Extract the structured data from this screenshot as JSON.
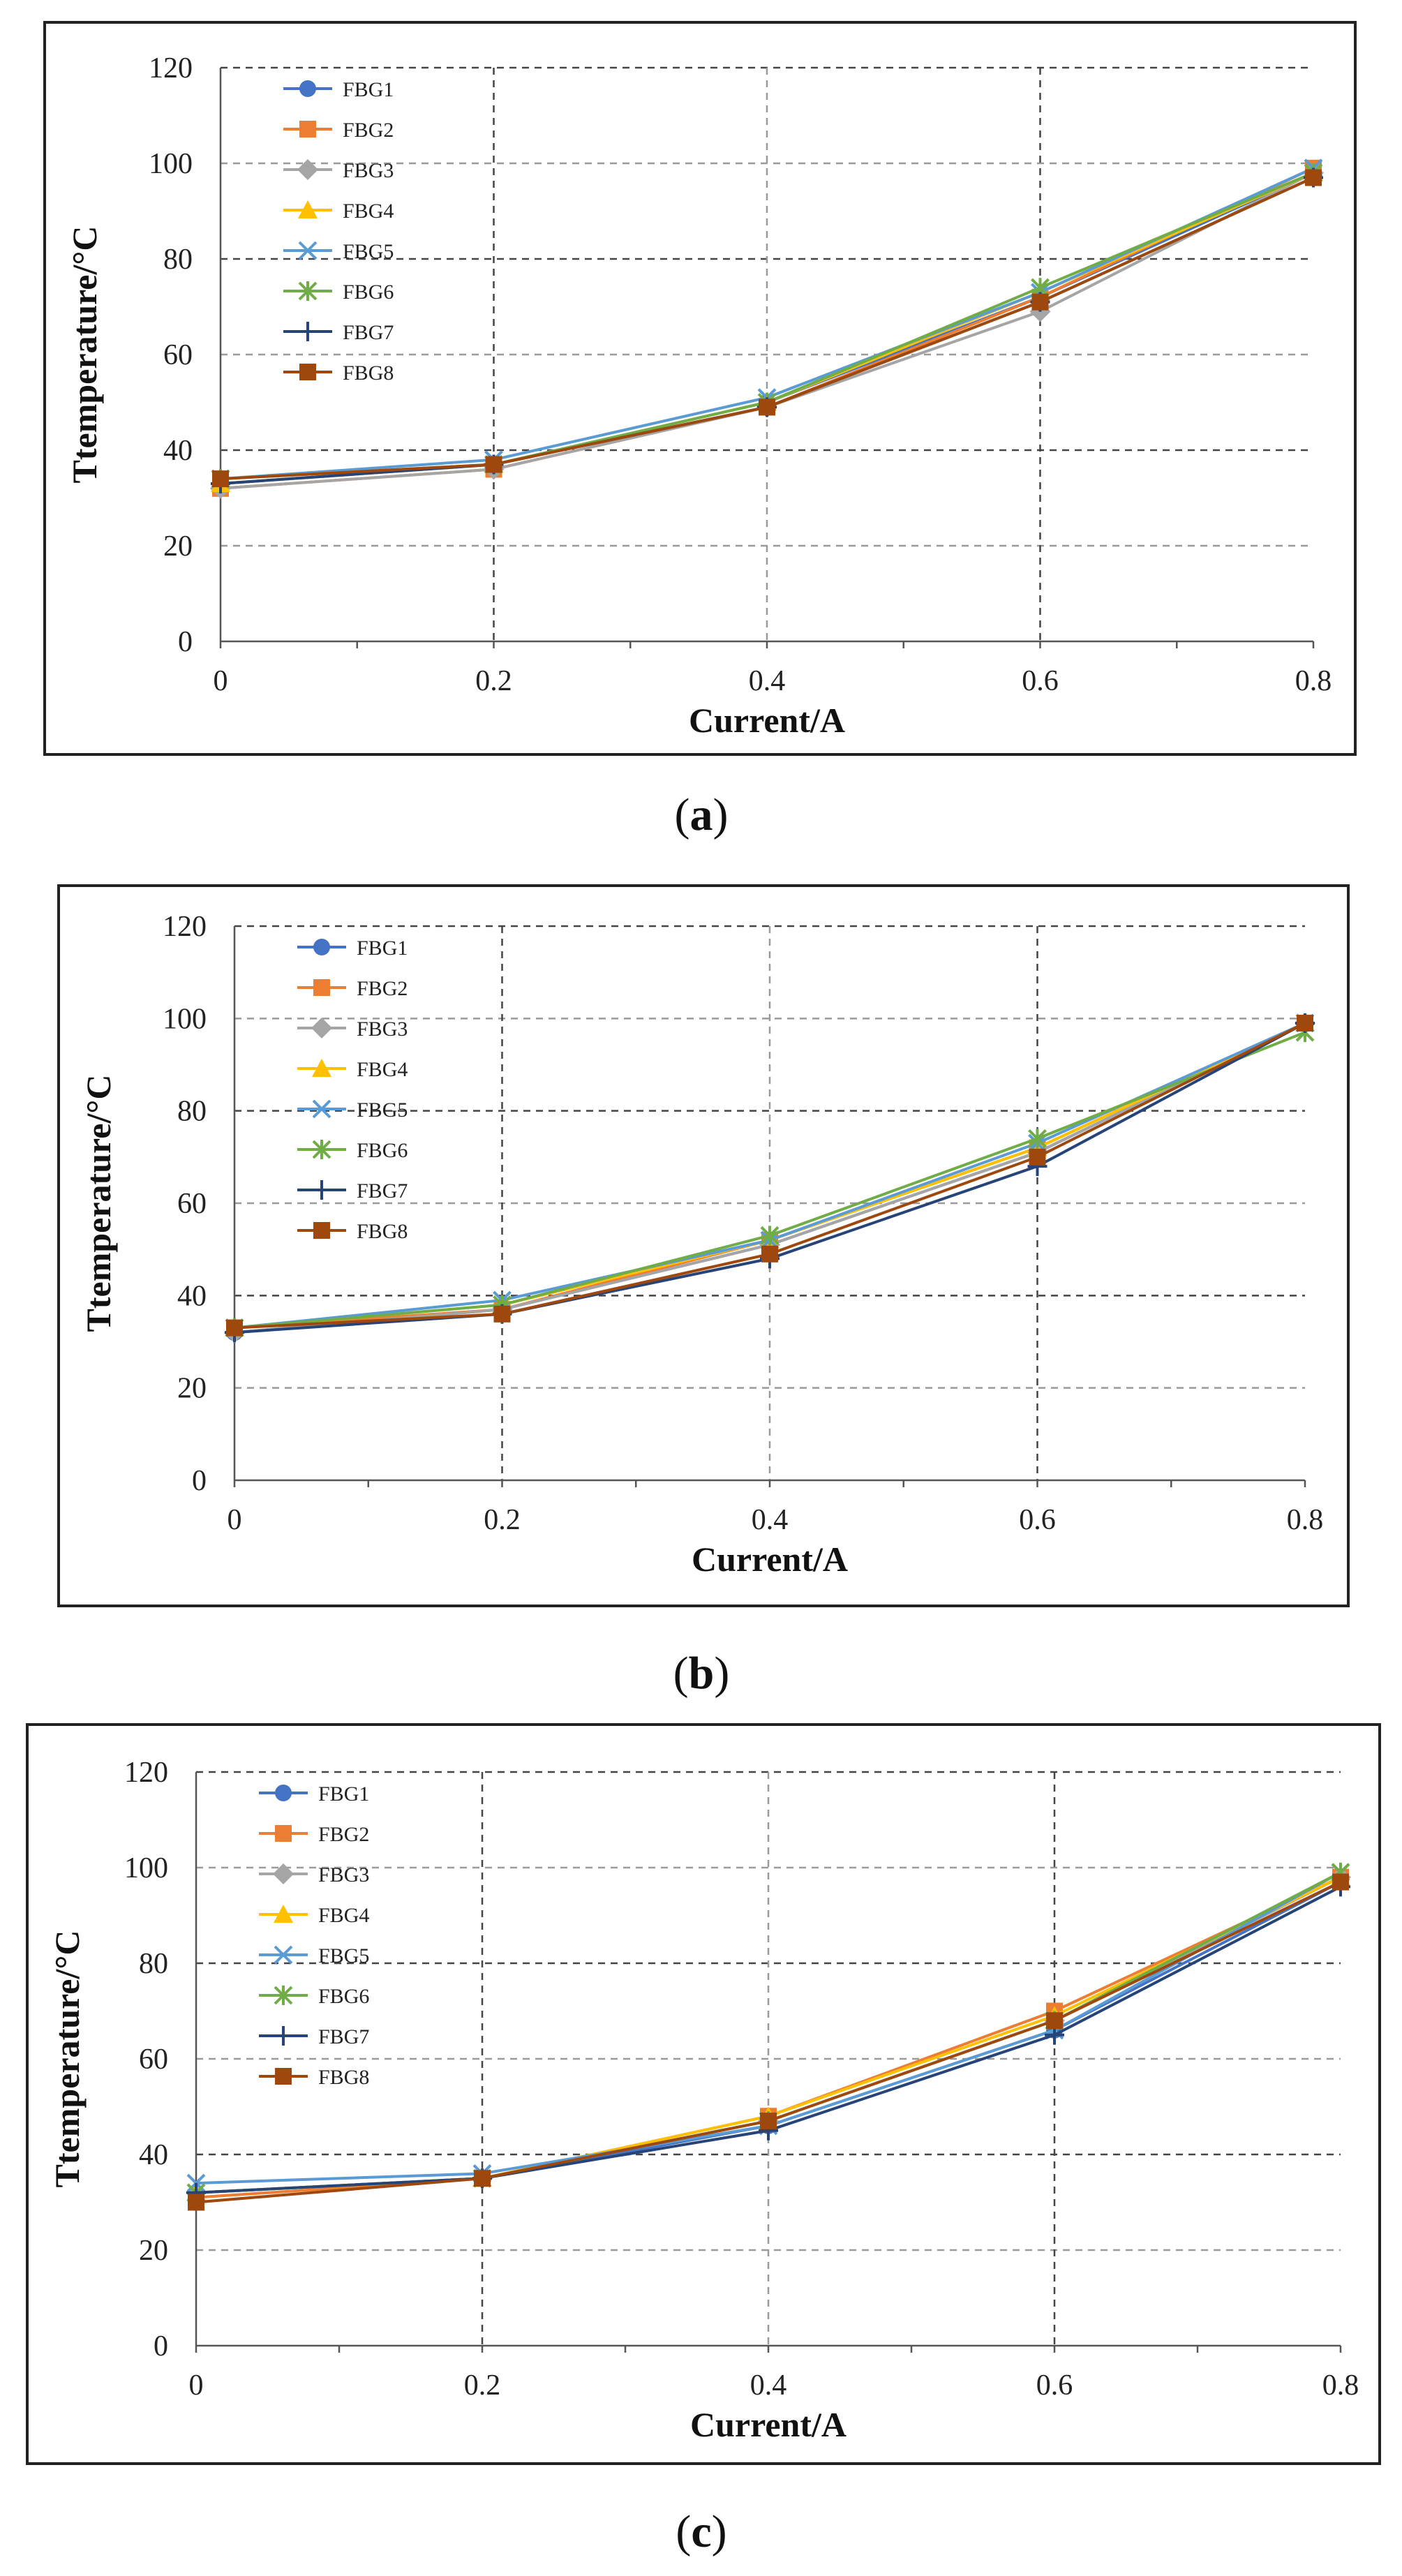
{
  "chart_data": [
    {
      "type": "line",
      "panel_label": "a",
      "xlabel": "Current/A",
      "ylabel": "Ttemperature/°C",
      "x": [
        0,
        0.2,
        0.4,
        0.6,
        0.8
      ],
      "x_ticks": [
        "0",
        "0.2",
        "0.4",
        "0.6",
        "0.8"
      ],
      "y_ticks": [
        "0",
        "20",
        "40",
        "60",
        "80",
        "100",
        "120"
      ],
      "xlim": [
        0,
        0.8
      ],
      "ylim": [
        0,
        120
      ],
      "grid": true,
      "legend_position": "top-left",
      "series": [
        {
          "name": "FBG1",
          "color": "#4472C4",
          "marker": "circle",
          "values": [
            33,
            37,
            50,
            72,
            98
          ]
        },
        {
          "name": "FBG2",
          "color": "#ED7D31",
          "marker": "square",
          "values": [
            32,
            36,
            49,
            72,
            99
          ]
        },
        {
          "name": "FBG3",
          "color": "#A5A5A5",
          "marker": "diamond",
          "values": [
            32,
            36,
            49,
            69,
            98
          ]
        },
        {
          "name": "FBG4",
          "color": "#FFC000",
          "marker": "triangle",
          "values": [
            33,
            37,
            50,
            73,
            98
          ]
        },
        {
          "name": "FBG5",
          "color": "#5B9BD5",
          "marker": "x",
          "values": [
            34,
            38,
            51,
            73,
            99
          ]
        },
        {
          "name": "FBG6",
          "color": "#70AD47",
          "marker": "star",
          "values": [
            34,
            37,
            50,
            74,
            98
          ]
        },
        {
          "name": "FBG7",
          "color": "#264478",
          "marker": "plus",
          "values": [
            33,
            37,
            49,
            71,
            97
          ]
        },
        {
          "name": "FBG8",
          "color": "#9E480E",
          "marker": "square",
          "values": [
            34,
            37,
            49,
            71,
            97
          ]
        }
      ]
    },
    {
      "type": "line",
      "panel_label": "b",
      "xlabel": "Current/A",
      "ylabel": "Ttemperature/°C",
      "x": [
        0,
        0.2,
        0.4,
        0.6,
        0.8
      ],
      "x_ticks": [
        "0",
        "0.2",
        "0.4",
        "0.6",
        "0.8"
      ],
      "y_ticks": [
        "0",
        "20",
        "40",
        "60",
        "80",
        "100",
        "120"
      ],
      "xlim": [
        0,
        0.8
      ],
      "ylim": [
        0,
        120
      ],
      "grid": true,
      "legend_position": "top-left",
      "series": [
        {
          "name": "FBG1",
          "color": "#4472C4",
          "marker": "circle",
          "values": [
            32,
            37,
            51,
            71,
            99
          ]
        },
        {
          "name": "FBG2",
          "color": "#ED7D31",
          "marker": "square",
          "values": [
            33,
            37,
            52,
            72,
            99
          ]
        },
        {
          "name": "FBG3",
          "color": "#A5A5A5",
          "marker": "diamond",
          "values": [
            32,
            37,
            51,
            71,
            99
          ]
        },
        {
          "name": "FBG4",
          "color": "#FFC000",
          "marker": "triangle",
          "values": [
            33,
            38,
            52,
            72,
            99
          ]
        },
        {
          "name": "FBG5",
          "color": "#5B9BD5",
          "marker": "x",
          "values": [
            33,
            39,
            52,
            73,
            99
          ]
        },
        {
          "name": "FBG6",
          "color": "#70AD47",
          "marker": "star",
          "values": [
            33,
            38,
            53,
            74,
            97
          ]
        },
        {
          "name": "FBG7",
          "color": "#264478",
          "marker": "plus",
          "values": [
            32,
            36,
            48,
            68,
            99
          ]
        },
        {
          "name": "FBG8",
          "color": "#9E480E",
          "marker": "square",
          "values": [
            33,
            36,
            49,
            70,
            99
          ]
        }
      ]
    },
    {
      "type": "line",
      "panel_label": "c",
      "xlabel": "Current/A",
      "ylabel": "Ttemperature/°C",
      "x": [
        0,
        0.2,
        0.4,
        0.6,
        0.8
      ],
      "x_ticks": [
        "0",
        "0.2",
        "0.4",
        "0.6",
        "0.8"
      ],
      "y_ticks": [
        "0",
        "20",
        "40",
        "60",
        "80",
        "100",
        "120"
      ],
      "xlim": [
        0,
        0.8
      ],
      "ylim": [
        0,
        120
      ],
      "grid": true,
      "legend_position": "top-left",
      "series": [
        {
          "name": "FBG1",
          "color": "#4472C4",
          "marker": "circle",
          "values": [
            32,
            35,
            46,
            66,
            97
          ]
        },
        {
          "name": "FBG2",
          "color": "#ED7D31",
          "marker": "square",
          "values": [
            31,
            35,
            48,
            70,
            98
          ]
        },
        {
          "name": "FBG3",
          "color": "#A5A5A5",
          "marker": "diamond",
          "values": [
            32,
            35,
            47,
            68,
            98
          ]
        },
        {
          "name": "FBG4",
          "color": "#FFC000",
          "marker": "triangle",
          "values": [
            32,
            35,
            48,
            69,
            98
          ]
        },
        {
          "name": "FBG5",
          "color": "#5B9BD5",
          "marker": "x",
          "values": [
            34,
            36,
            46,
            66,
            99
          ]
        },
        {
          "name": "FBG6",
          "color": "#70AD47",
          "marker": "star",
          "values": [
            32,
            35,
            47,
            68,
            99
          ]
        },
        {
          "name": "FBG7",
          "color": "#264478",
          "marker": "plus",
          "values": [
            32,
            35,
            45,
            65,
            96
          ]
        },
        {
          "name": "FBG8",
          "color": "#9E480E",
          "marker": "square",
          "values": [
            30,
            35,
            47,
            68,
            97
          ]
        }
      ]
    }
  ]
}
